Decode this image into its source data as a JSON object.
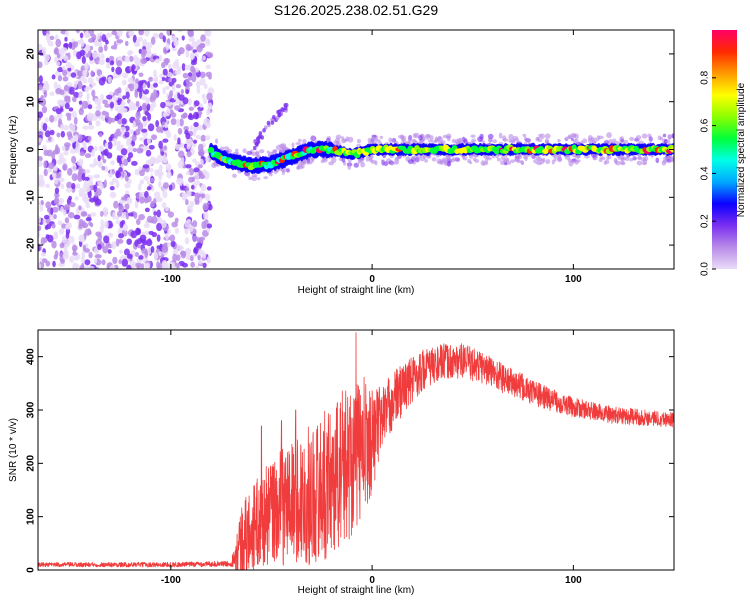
{
  "figure": {
    "title": "S126.2025.238.02.51.G29"
  },
  "chart_data": [
    {
      "type": "heatmap",
      "name": "spectrogram",
      "xlabel": "Height of straight line (km)",
      "ylabel": "Frequency (Hz)",
      "xlim": [
        -166,
        150
      ],
      "ylim": [
        -25,
        25
      ],
      "xticks": [
        {
          "value": -100,
          "label": "-100"
        },
        {
          "value": 0,
          "label": "0"
        },
        {
          "value": 100,
          "label": "100"
        }
      ],
      "yticks": [
        {
          "value": 20,
          "label": "20"
        },
        {
          "value": 10,
          "label": "10"
        },
        {
          "value": 0,
          "label": "0"
        },
        {
          "value": -10,
          "label": "-10"
        },
        {
          "value": -20,
          "label": "-20"
        }
      ],
      "noise_region_x": [
        -166,
        -80
      ],
      "signal_center_hz": [
        {
          "x": -80,
          "f": -0.5
        },
        {
          "x": -70,
          "f": -2.5
        },
        {
          "x": -60,
          "f": -3.5
        },
        {
          "x": -50,
          "f": -3
        },
        {
          "x": -40,
          "f": -1.5
        },
        {
          "x": -30,
          "f": 0
        },
        {
          "x": -20,
          "f": 0
        },
        {
          "x": -10,
          "f": -1
        },
        {
          "x": 0,
          "f": 0
        },
        {
          "x": 20,
          "f": 0
        },
        {
          "x": 50,
          "f": 0
        },
        {
          "x": 80,
          "f": 0
        },
        {
          "x": 100,
          "f": 0
        },
        {
          "x": 150,
          "f": 0
        }
      ],
      "feature_branch": [
        {
          "x": -60,
          "f": 0
        },
        {
          "x": -50,
          "f": 6
        },
        {
          "x": -42,
          "f": 9
        }
      ],
      "colorbar": {
        "label": "Normalized spectral amplitude",
        "range": [
          0,
          1
        ],
        "ticks": [
          {
            "value": 0.0,
            "label": "0.0"
          },
          {
            "value": 0.2,
            "label": "0.2"
          },
          {
            "value": 0.4,
            "label": "0.4"
          },
          {
            "value": 0.6,
            "label": "0.6"
          },
          {
            "value": 0.8,
            "label": "0.8"
          }
        ],
        "colors": [
          "#e9dcf8",
          "#b98be8",
          "#7b2ff0",
          "#0b00ff",
          "#00a8ff",
          "#00ffe8",
          "#00ff3a",
          "#8cff00",
          "#ffff00",
          "#ff9a00",
          "#ff2a00",
          "#ff0066"
        ]
      }
    },
    {
      "type": "line",
      "name": "snr",
      "xlabel": "Height of straight line (km)",
      "ylabel": "SNR (10 * v/v)",
      "xlim": [
        -166,
        150
      ],
      "ylim": [
        0,
        450
      ],
      "xticks": [
        {
          "value": -100,
          "label": "-100"
        },
        {
          "value": 0,
          "label": "0"
        },
        {
          "value": 100,
          "label": "100"
        }
      ],
      "yticks": [
        {
          "value": 0,
          "label": "0"
        },
        {
          "value": 100,
          "label": "100"
        },
        {
          "value": 200,
          "label": "200"
        },
        {
          "value": 300,
          "label": "300"
        },
        {
          "value": 400,
          "label": "400"
        }
      ],
      "series": [
        {
          "name": "SNR",
          "color": "#f03c3c",
          "trend": [
            {
              "x": -166,
              "y": 10
            },
            {
              "x": -100,
              "y": 10
            },
            {
              "x": -70,
              "y": 12
            },
            {
              "x": -66,
              "y": 50
            },
            {
              "x": -55,
              "y": 95
            },
            {
              "x": -40,
              "y": 130
            },
            {
              "x": -30,
              "y": 140
            },
            {
              "x": -20,
              "y": 170
            },
            {
              "x": -10,
              "y": 210
            },
            {
              "x": 0,
              "y": 245
            },
            {
              "x": 5,
              "y": 290
            },
            {
              "x": 15,
              "y": 340
            },
            {
              "x": 25,
              "y": 375
            },
            {
              "x": 35,
              "y": 390
            },
            {
              "x": 45,
              "y": 392
            },
            {
              "x": 55,
              "y": 380
            },
            {
              "x": 70,
              "y": 350
            },
            {
              "x": 85,
              "y": 325
            },
            {
              "x": 100,
              "y": 305
            },
            {
              "x": 120,
              "y": 290
            },
            {
              "x": 150,
              "y": 282
            }
          ],
          "noise_amplitude": [
            {
              "x": -166,
              "a": 4
            },
            {
              "x": -70,
              "a": 5
            },
            {
              "x": -65,
              "a": 70
            },
            {
              "x": -40,
              "a": 120
            },
            {
              "x": -15,
              "a": 150
            },
            {
              "x": -5,
              "a": 140
            },
            {
              "x": 5,
              "a": 60
            },
            {
              "x": 30,
              "a": 35
            },
            {
              "x": 60,
              "a": 30
            },
            {
              "x": 100,
              "a": 18
            },
            {
              "x": 150,
              "a": 14
            }
          ],
          "peaks": [
            {
              "x": -8,
              "y": 445
            },
            {
              "x": -38,
              "y": 300
            },
            {
              "x": -45,
              "y": 280
            },
            {
              "x": -55,
              "y": 270
            }
          ]
        }
      ]
    }
  ]
}
